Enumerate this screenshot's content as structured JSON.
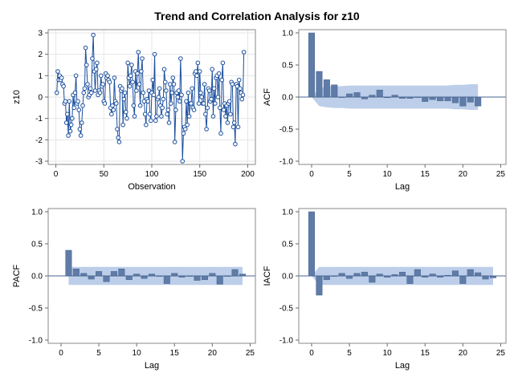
{
  "figure": {
    "title": "Trend and Correlation Analysis for z10"
  },
  "chart_data": [
    {
      "type": "line",
      "panel": "series",
      "title": "",
      "xlabel": "Observation",
      "ylabel": "z10",
      "xlim": [
        -8,
        208
      ],
      "ylim": [
        -3.15,
        3.15
      ],
      "xticks": [
        0,
        50,
        100,
        150,
        200
      ],
      "yticks": [
        -3,
        -2,
        -1,
        0,
        1,
        2,
        3
      ],
      "grid": true,
      "series": [
        {
          "x_start": 1,
          "values": [
            0.2,
            1.2,
            0.8,
            1.0,
            0.8,
            0.9,
            0.6,
            0.5,
            -0.3,
            -0.2,
            -1.2,
            -0.8,
            -1.8,
            -0.2,
            -1.6,
            -1.3,
            -1.0,
            0.1,
            -0.5,
            0.2,
            1.0,
            -0.3,
            -0.2,
            -0.6,
            -1.5,
            -1.8,
            -1.2,
            -0.4,
            0.2,
            0.4,
            2.3,
            1.5,
            0.6,
            0.0,
            0.1,
            0.4,
            0.2,
            1.8,
            2.9,
            1.2,
            0.3,
            1.3,
            1.6,
            0.1,
            0.3,
            0.2,
            1.0,
            0.5,
            0.6,
            -0.2,
            -0.3,
            1.1,
            0.9,
            1.0,
            0.8,
            0.7,
            -0.5,
            -0.8,
            -0.4,
            -0.6,
            0.9,
            -0.2,
            -0.3,
            -1.5,
            -1.9,
            -2.1,
            0.5,
            0.3,
            0.4,
            -1.3,
            -0.1,
            0.2,
            -0.7,
            -1.0,
            1.6,
            0.9,
            0.5,
            1.0,
            1.5,
            0.7,
            -0.4,
            -0.9,
            1.2,
            0.3,
            1.1,
            2.1,
            0.6,
            -0.4,
            1.2,
            1.8,
            0.2,
            -0.2,
            -0.8,
            -1.3,
            -0.1,
            -0.2,
            0.3,
            -0.8,
            -1.1,
            0.2,
            0.8,
            0.1,
            2.0,
            -1.1,
            -0.9,
            -0.1,
            0.0,
            0.4,
            -0.4,
            -0.9,
            -0.5,
            -0.1,
            1.3,
            0.7,
            0.3,
            -0.8,
            -0.6,
            -1.2,
            0.6,
            -0.3,
            0.2,
            0.9,
            0.6,
            -2.1,
            -0.6,
            0.2,
            0.0,
            0.3,
            -0.2,
            1.8,
            0.1,
            -3.0,
            -1.7,
            -1.4,
            -1.5,
            -0.2,
            -1.3,
            0.2,
            -0.9,
            -0.3,
            -0.3,
            0.4,
            -0.5,
            -0.6,
            1.1,
            1.2,
            1.0,
            1.6,
            -0.3,
            1.2,
            0.2,
            0.0,
            -0.3,
            -0.3,
            0.6,
            -0.8,
            -1.5,
            -0.5,
            0.4,
            0.3,
            -0.2,
            -0.1,
            1.3,
            -0.9,
            0.4,
            -0.3,
            0.9,
            1.0,
            0.0,
            1.1,
            -0.5,
            -1.7,
            0.8,
            1.6,
            -0.6,
            -0.3,
            -0.9,
            -0.4,
            -1.2,
            -0.3,
            -0.2,
            -0.8,
            0.7,
            0.6,
            -1.4,
            -1.2,
            -2.2,
            0.6,
            0.5,
            -1.4,
            0.8,
            0.4,
            0.2,
            -0.1,
            0.1,
            2.1
          ]
        }
      ]
    },
    {
      "type": "bar",
      "panel": "acf",
      "title": "",
      "xlabel": "Lag",
      "ylabel": "ACF",
      "xlim": [
        -1.7,
        25.7
      ],
      "ylim": [
        -1.05,
        1.05
      ],
      "xticks": [
        0,
        5,
        10,
        15,
        20,
        25
      ],
      "yticks": [
        -1.0,
        -0.5,
        0.0,
        0.5,
        1.0
      ],
      "grid": false,
      "lags": [
        0,
        1,
        2,
        3,
        4,
        5,
        6,
        7,
        8,
        9,
        10,
        11,
        12,
        13,
        14,
        15,
        16,
        17,
        18,
        19,
        20,
        21,
        22
      ],
      "values": [
        1.0,
        0.4,
        0.27,
        0.19,
        0.0,
        0.05,
        0.07,
        -0.03,
        0.03,
        0.11,
        -0.01,
        0.03,
        -0.02,
        -0.02,
        0.0,
        -0.07,
        -0.04,
        -0.06,
        -0.06,
        -0.09,
        -0.14,
        -0.08,
        -0.14
      ],
      "conf_band": [
        0.0,
        0.14,
        0.16,
        0.17,
        0.17,
        0.18,
        0.18,
        0.18,
        0.18,
        0.18,
        0.18,
        0.18,
        0.18,
        0.18,
        0.18,
        0.18,
        0.18,
        0.18,
        0.18,
        0.19,
        0.19,
        0.2,
        0.2
      ]
    },
    {
      "type": "bar",
      "panel": "pacf",
      "title": "",
      "xlabel": "Lag",
      "ylabel": "PACF",
      "xlim": [
        -1.7,
        25.7
      ],
      "ylim": [
        -1.05,
        1.05
      ],
      "xticks": [
        0,
        5,
        10,
        15,
        20,
        25
      ],
      "yticks": [
        -1.0,
        -0.5,
        0.0,
        0.5,
        1.0
      ],
      "grid": false,
      "lags": [
        1,
        2,
        3,
        4,
        5,
        6,
        7,
        8,
        9,
        10,
        11,
        12,
        13,
        14,
        15,
        16,
        17,
        18,
        19,
        20,
        21,
        22,
        23,
        24
      ],
      "values": [
        0.4,
        0.11,
        0.04,
        -0.05,
        0.07,
        -0.09,
        0.07,
        0.11,
        -0.06,
        0.03,
        -0.04,
        0.03,
        0.0,
        -0.12,
        0.04,
        -0.02,
        0.0,
        -0.07,
        -0.06,
        0.04,
        -0.13,
        0.0,
        0.1,
        0.03
      ],
      "conf_band": [
        0.14,
        0.14,
        0.14,
        0.14,
        0.14,
        0.14,
        0.14,
        0.14,
        0.14,
        0.14,
        0.14,
        0.14,
        0.14,
        0.14,
        0.14,
        0.14,
        0.14,
        0.14,
        0.14,
        0.14,
        0.14,
        0.14,
        0.14,
        0.14
      ]
    },
    {
      "type": "bar",
      "panel": "iacf",
      "title": "",
      "xlabel": "Lag",
      "ylabel": "IACF",
      "xlim": [
        -1.7,
        25.7
      ],
      "ylim": [
        -1.05,
        1.05
      ],
      "xticks": [
        0,
        5,
        10,
        15,
        20,
        25
      ],
      "yticks": [
        -1.0,
        -0.5,
        0.0,
        0.5,
        1.0
      ],
      "grid": false,
      "lags": [
        0,
        1,
        2,
        3,
        4,
        5,
        6,
        7,
        8,
        9,
        10,
        11,
        12,
        13,
        14,
        15,
        16,
        17,
        18,
        19,
        20,
        21,
        22,
        23,
        24
      ],
      "values": [
        1.0,
        -0.3,
        -0.06,
        0.0,
        0.04,
        -0.04,
        0.04,
        0.06,
        -0.1,
        0.03,
        -0.02,
        0.02,
        0.06,
        -0.12,
        0.1,
        -0.02,
        0.03,
        -0.02,
        0.01,
        0.08,
        -0.12,
        0.1,
        0.05,
        -0.05,
        -0.03
      ],
      "conf_band": [
        0.0,
        0.14,
        0.14,
        0.14,
        0.14,
        0.14,
        0.14,
        0.14,
        0.14,
        0.14,
        0.14,
        0.14,
        0.14,
        0.14,
        0.14,
        0.14,
        0.14,
        0.14,
        0.14,
        0.14,
        0.14,
        0.14,
        0.14,
        0.14,
        0.14
      ]
    }
  ]
}
